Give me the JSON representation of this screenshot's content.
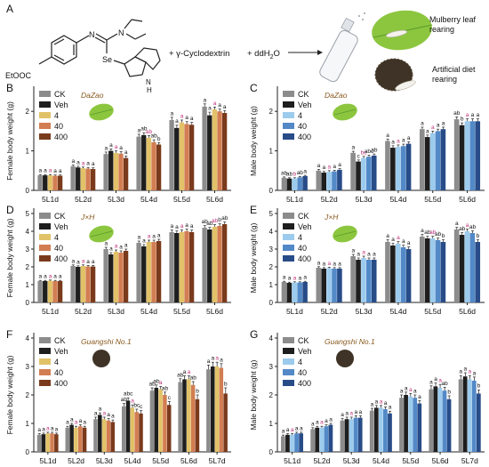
{
  "panel_a": {
    "letter": "A",
    "compound_group_label": "EtOOC",
    "atom_n": "N",
    "atom_se": "Se",
    "atom_nh": "N",
    "atom_h": "H",
    "plus_cyclodextrin": "+ γ-Cyclodextrin",
    "plus_water": "+ ddH",
    "water_sub": "2",
    "water_o": "O",
    "mulberry_line1": "Mulberry leaf",
    "mulberry_line2": "rearing",
    "artificial_line1": "Artificial diet",
    "artificial_line2": "rearing"
  },
  "colors": {
    "CK": "#8c8c8c",
    "Veh": "#1e1e1e",
    "female_4": "#e2c268",
    "female_40": "#d27d52",
    "female_400": "#7a3a1c",
    "male_4": "#9ccbed",
    "male_40": "#5389c7",
    "male_400": "#284c88",
    "sig_letter": "#c0307a",
    "strain": "#8a5a20",
    "leaf": "#8cc63f",
    "leaf_vein": "#5a9a2a",
    "diet": "#3e3326"
  },
  "chart_data": [
    {
      "id": "B",
      "type": "bar",
      "strain": "DaZao",
      "ylabel": "Female body weight (g)",
      "ylim": [
        0,
        2.5
      ],
      "yticks": [
        0,
        1,
        2
      ],
      "series_names": [
        "CK",
        "Veh",
        "4",
        "40",
        "400"
      ],
      "palette": "female",
      "icon": "leaf",
      "categories": [
        "5L1d",
        "5L2d",
        "5L3d",
        "5L4d",
        "5L5d",
        "5L6d"
      ],
      "values": [
        [
          0.38,
          0.38,
          0.38,
          0.37,
          0.37
        ],
        [
          0.61,
          0.58,
          0.56,
          0.55,
          0.54
        ],
        [
          0.92,
          1.0,
          0.95,
          0.93,
          0.82
        ],
        [
          1.36,
          1.4,
          1.33,
          1.22,
          1.16
        ],
        [
          1.78,
          1.58,
          1.72,
          1.68,
          1.66
        ],
        [
          2.12,
          1.9,
          2.05,
          2.0,
          1.96
        ]
      ],
      "errors": [
        [
          0.02,
          0.02,
          0.02,
          0.02,
          0.02
        ],
        [
          0.03,
          0.03,
          0.03,
          0.03,
          0.03
        ],
        [
          0.05,
          0.05,
          0.05,
          0.05,
          0.05
        ],
        [
          0.06,
          0.06,
          0.06,
          0.06,
          0.05
        ],
        [
          0.07,
          0.07,
          0.06,
          0.06,
          0.06
        ],
        [
          0.07,
          0.08,
          0.06,
          0.06,
          0.06
        ]
      ],
      "letters": [
        [
          "a",
          "a",
          "a",
          "a",
          "a"
        ],
        [
          "a",
          "a",
          "a",
          "a",
          "a"
        ],
        [
          "a",
          "a",
          "a",
          "a",
          "a"
        ],
        [
          "a",
          "ab",
          "ab",
          "ab",
          "b"
        ],
        [
          "a",
          "a",
          "a",
          "a",
          "a"
        ],
        [
          "a",
          "a",
          "a",
          "a",
          "a"
        ]
      ]
    },
    {
      "id": "C",
      "type": "bar",
      "strain": "DaZao",
      "ylabel": "Male body weight (g)",
      "ylim": [
        0,
        2.5
      ],
      "yticks": [
        0,
        1,
        2
      ],
      "series_names": [
        "CK",
        "Veh",
        "4",
        "40",
        "400"
      ],
      "palette": "male",
      "icon": "leaf",
      "categories": [
        "5L1d",
        "5L2d",
        "5L3d",
        "5L4d",
        "5L5d",
        "5L6d"
      ],
      "values": [
        [
          0.32,
          0.3,
          0.3,
          0.33,
          0.36
        ],
        [
          0.5,
          0.45,
          0.47,
          0.48,
          0.52
        ],
        [
          0.95,
          0.73,
          0.82,
          0.85,
          0.88
        ],
        [
          1.25,
          1.08,
          1.1,
          1.12,
          1.18
        ],
        [
          1.55,
          1.35,
          1.45,
          1.5,
          1.55
        ],
        [
          1.8,
          1.65,
          1.75,
          1.75,
          1.75
        ]
      ],
      "errors": [
        [
          0.02,
          0.02,
          0.02,
          0.02,
          0.02
        ],
        [
          0.03,
          0.03,
          0.03,
          0.03,
          0.03
        ],
        [
          0.04,
          0.04,
          0.04,
          0.04,
          0.04
        ],
        [
          0.05,
          0.05,
          0.05,
          0.05,
          0.05
        ],
        [
          0.05,
          0.05,
          0.05,
          0.05,
          0.05
        ],
        [
          0.06,
          0.06,
          0.06,
          0.06,
          0.06
        ]
      ],
      "letters": [
        [
          "ab",
          "ab",
          "b",
          "ab",
          "a"
        ],
        [
          "a",
          "a",
          "a",
          "a",
          "a"
        ],
        [
          "a",
          "c",
          "bc",
          "abc",
          "ab"
        ],
        [
          "a",
          "a",
          "a",
          "a",
          "a"
        ],
        [
          "a",
          "a",
          "a",
          "a",
          "a"
        ],
        [
          "ab",
          "b",
          "a",
          "a",
          "a"
        ]
      ]
    },
    {
      "id": "D",
      "type": "bar",
      "strain": "J×H",
      "ylabel": "Female body weight (g)",
      "ylim": [
        0,
        5
      ],
      "yticks": [
        0,
        1,
        2,
        3,
        4,
        5
      ],
      "series_names": [
        "CK",
        "Veh",
        "4",
        "40",
        "400"
      ],
      "palette": "female",
      "icon": "leaf",
      "categories": [
        "5L1d",
        "5L2d",
        "5L3d",
        "5L4d",
        "5L5d",
        "5L6d"
      ],
      "values": [
        [
          1.2,
          1.2,
          1.22,
          1.2,
          1.2
        ],
        [
          2.05,
          2.0,
          2.05,
          2.02,
          2.02
        ],
        [
          3.0,
          2.7,
          2.85,
          2.8,
          2.9
        ],
        [
          3.35,
          3.15,
          3.4,
          3.4,
          3.45
        ],
        [
          3.95,
          3.9,
          3.95,
          4.0,
          3.95
        ],
        [
          4.2,
          4.1,
          4.25,
          4.3,
          4.4
        ]
      ],
      "errors": [
        [
          0.04,
          0.04,
          0.04,
          0.04,
          0.04
        ],
        [
          0.06,
          0.06,
          0.06,
          0.06,
          0.06
        ],
        [
          0.1,
          0.1,
          0.1,
          0.1,
          0.1
        ],
        [
          0.1,
          0.1,
          0.1,
          0.1,
          0.1
        ],
        [
          0.12,
          0.12,
          0.12,
          0.12,
          0.12
        ],
        [
          0.12,
          0.12,
          0.12,
          0.12,
          0.12
        ]
      ],
      "letters": [
        [
          "a",
          "a",
          "a",
          "a",
          "a"
        ],
        [
          "a",
          "a",
          "a",
          "a",
          "a"
        ],
        [
          "a",
          "a",
          "a",
          "a",
          "a"
        ],
        [
          "a",
          "a",
          "a",
          "a",
          "a"
        ],
        [
          "a",
          "a",
          "a",
          "a",
          "a"
        ],
        [
          "ab",
          "ab",
          "ab",
          "b",
          "ab"
        ]
      ]
    },
    {
      "id": "E",
      "type": "bar",
      "strain": "J×H",
      "ylabel": "Male body weight (g)",
      "ylim": [
        0,
        5
      ],
      "yticks": [
        0,
        1,
        2,
        3,
        4,
        5
      ],
      "series_names": [
        "CK",
        "Veh",
        "4",
        "40",
        "400"
      ],
      "palette": "male",
      "icon": "leaf",
      "categories": [
        "5L1d",
        "5L2d",
        "5L3d",
        "5L4d",
        "5L5d",
        "5L6d"
      ],
      "values": [
        [
          1.15,
          1.1,
          1.12,
          1.12,
          1.15
        ],
        [
          1.95,
          1.9,
          1.92,
          1.9,
          1.9
        ],
        [
          2.6,
          2.4,
          2.5,
          2.4,
          2.4
        ],
        [
          3.4,
          3.2,
          3.3,
          3.1,
          3.0
        ],
        [
          3.7,
          3.6,
          3.6,
          3.5,
          3.4
        ],
        [
          4.1,
          3.8,
          4.0,
          3.9,
          3.4
        ]
      ],
      "errors": [
        [
          0.04,
          0.04,
          0.04,
          0.04,
          0.04
        ],
        [
          0.06,
          0.06,
          0.06,
          0.06,
          0.06
        ],
        [
          0.1,
          0.1,
          0.1,
          0.1,
          0.1
        ],
        [
          0.12,
          0.12,
          0.12,
          0.12,
          0.12
        ],
        [
          0.12,
          0.12,
          0.12,
          0.12,
          0.12
        ],
        [
          0.12,
          0.12,
          0.12,
          0.12,
          0.12
        ]
      ],
      "letters": [
        [
          "a",
          "a",
          "a",
          "a",
          "a"
        ],
        [
          "a",
          "a",
          "a",
          "a",
          "a"
        ],
        [
          "a",
          "a",
          "a",
          "a",
          "a"
        ],
        [
          "a",
          "a",
          "a",
          "a",
          "a"
        ],
        [
          "a",
          "ab",
          "ab",
          "ab",
          "b"
        ],
        [
          "a",
          "ab",
          "a",
          "ab",
          "b"
        ]
      ]
    },
    {
      "id": "F",
      "type": "bar",
      "strain": "Guangshi No.1",
      "ylabel": "Female body weight (g)",
      "ylim": [
        0,
        4
      ],
      "yticks": [
        0,
        1,
        2,
        3,
        4
      ],
      "series_names": [
        "CK",
        "Veh",
        "4",
        "40",
        "400"
      ],
      "palette": "female",
      "icon": "diet",
      "categories": [
        "5L1d",
        "5L2d",
        "5L3d",
        "5L4d",
        "5L5d",
        "5L6d",
        "5L7d"
      ],
      "values": [
        [
          0.6,
          0.62,
          0.65,
          0.65,
          0.62
        ],
        [
          0.85,
          0.95,
          0.85,
          0.9,
          0.85
        ],
        [
          1.15,
          1.3,
          1.15,
          1.1,
          1.05
        ],
        [
          1.6,
          1.8,
          1.55,
          1.4,
          1.35
        ],
        [
          2.15,
          2.25,
          2.2,
          2.0,
          1.65
        ],
        [
          2.45,
          2.55,
          2.55,
          2.35,
          1.85
        ],
        [
          2.9,
          3.0,
          3.0,
          2.95,
          2.05
        ]
      ],
      "errors": [
        [
          0.04,
          0.04,
          0.04,
          0.04,
          0.04
        ],
        [
          0.05,
          0.05,
          0.05,
          0.05,
          0.05
        ],
        [
          0.07,
          0.07,
          0.07,
          0.07,
          0.07
        ],
        [
          0.1,
          0.1,
          0.1,
          0.1,
          0.1
        ],
        [
          0.1,
          0.1,
          0.1,
          0.1,
          0.12
        ],
        [
          0.12,
          0.12,
          0.12,
          0.12,
          0.15
        ],
        [
          0.15,
          0.15,
          0.15,
          0.15,
          0.2
        ]
      ],
      "letters": [
        [
          "a",
          "a",
          "a",
          "a",
          "a"
        ],
        [
          "a",
          "a",
          "a",
          "a",
          "a"
        ],
        [
          "a",
          "a",
          "a",
          "a",
          "a"
        ],
        [
          "ab",
          "abc",
          "a",
          "bc",
          "c"
        ],
        [
          "ab",
          "ab",
          "a",
          "ab",
          "c"
        ],
        [
          "ab",
          "a",
          "a",
          "ab",
          "b"
        ],
        [
          "a",
          "a",
          "a",
          "a",
          "b"
        ]
      ]
    },
    {
      "id": "G",
      "type": "bar",
      "strain": "Guangshi No.1",
      "ylabel": "Male body weight (g)",
      "ylim": [
        0,
        4
      ],
      "yticks": [
        0,
        1,
        2,
        3,
        4
      ],
      "series_names": [
        "CK",
        "Veh",
        "4",
        "40",
        "400"
      ],
      "palette": "male",
      "icon": "diet",
      "categories": [
        "5L1d",
        "5L2d",
        "5L3d",
        "5L4d",
        "5L5d",
        "5L6d",
        "5L7d"
      ],
      "values": [
        [
          0.55,
          0.6,
          0.6,
          0.65,
          0.65
        ],
        [
          0.8,
          0.85,
          0.85,
          0.9,
          0.95
        ],
        [
          1.1,
          1.15,
          1.15,
          1.2,
          1.2
        ],
        [
          1.45,
          1.55,
          1.55,
          1.5,
          1.35
        ],
        [
          1.9,
          2.0,
          1.95,
          1.9,
          1.7
        ],
        [
          2.2,
          2.3,
          2.25,
          2.15,
          1.85
        ],
        [
          2.55,
          2.65,
          2.55,
          2.5,
          2.05
        ]
      ],
      "errors": [
        [
          0.04,
          0.04,
          0.04,
          0.04,
          0.04
        ],
        [
          0.05,
          0.05,
          0.05,
          0.05,
          0.05
        ],
        [
          0.07,
          0.07,
          0.07,
          0.07,
          0.07
        ],
        [
          0.08,
          0.08,
          0.08,
          0.08,
          0.08
        ],
        [
          0.1,
          0.1,
          0.1,
          0.1,
          0.1
        ],
        [
          0.12,
          0.12,
          0.12,
          0.12,
          0.12
        ],
        [
          0.13,
          0.13,
          0.13,
          0.13,
          0.13
        ]
      ],
      "letters": [
        [
          "a",
          "a",
          "a",
          "a",
          "a"
        ],
        [
          "a",
          "a",
          "a",
          "a",
          "a"
        ],
        [
          "a",
          "a",
          "a",
          "a",
          "a"
        ],
        [
          "a",
          "a",
          "a",
          "a",
          "a"
        ],
        [
          "a",
          "a",
          "a",
          "a",
          "a"
        ],
        [
          "a",
          "a",
          "a",
          "ab",
          "b"
        ],
        [
          "a",
          "a",
          "a",
          "a",
          "b"
        ]
      ]
    }
  ]
}
